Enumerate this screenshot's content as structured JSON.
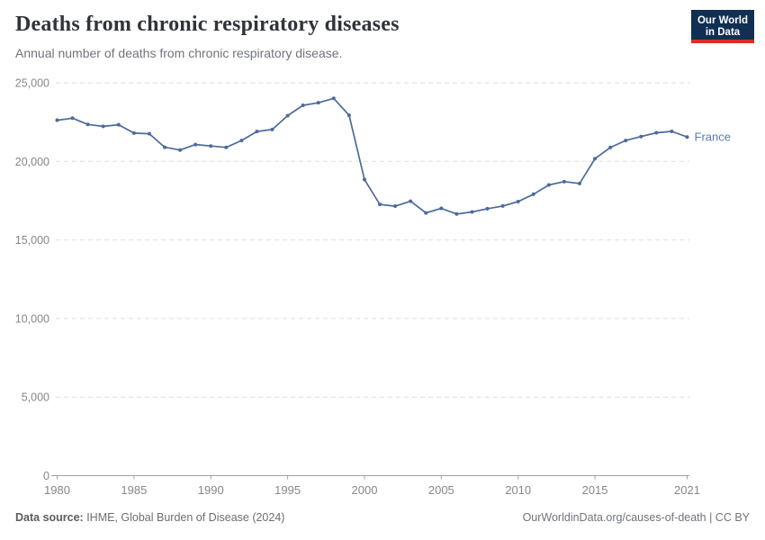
{
  "header": {
    "title": "Deaths from chronic respiratory diseases",
    "subtitle": "Annual number of deaths from chronic respiratory disease."
  },
  "logo": {
    "line1": "Our World",
    "line2": "in Data"
  },
  "footer": {
    "source_label": "Data source:",
    "source_value": " IHME, Global Burden of Disease (2024)",
    "link": "OurWorldinData.org/causes-of-death | CC BY"
  },
  "colors": {
    "line": "#4C6A9C",
    "entity_label": "#5B7CAB",
    "grid": "#dedede",
    "axis": "#a2a2a2",
    "tick_text": "#878787",
    "logo_navy": "#102f52",
    "logo_red": "#dc2e22"
  },
  "chart_data": {
    "type": "line",
    "title": "Deaths from chronic respiratory diseases",
    "subtitle": "Annual number of deaths from chronic respiratory disease.",
    "xlabel": "",
    "ylabel": "",
    "x_range": [
      1980,
      2021
    ],
    "ylim": [
      0,
      25000
    ],
    "grid": "horizontal dashed gridlines, solid bottom axis only",
    "legend": "inline end-of-line entity label",
    "marker": "point markers on every year",
    "yticks": [
      {
        "value": 0,
        "label": "0"
      },
      {
        "value": 5000,
        "label": "5,000"
      },
      {
        "value": 10000,
        "label": "10,000"
      },
      {
        "value": 15000,
        "label": "15,000"
      },
      {
        "value": 20000,
        "label": "20,000"
      },
      {
        "value": 25000,
        "label": "25,000"
      }
    ],
    "xticks": [
      {
        "value": 1980,
        "label": "1980"
      },
      {
        "value": 1985,
        "label": "1985"
      },
      {
        "value": 1990,
        "label": "1990"
      },
      {
        "value": 1995,
        "label": "1995"
      },
      {
        "value": 2000,
        "label": "2000"
      },
      {
        "value": 2005,
        "label": "2005"
      },
      {
        "value": 2010,
        "label": "2010"
      },
      {
        "value": 2015,
        "label": "2015"
      },
      {
        "value": 2021,
        "label": "2021"
      }
    ],
    "series": [
      {
        "name": "France",
        "color": "#4C6A9C",
        "x": [
          1980,
          1981,
          1982,
          1983,
          1984,
          1985,
          1986,
          1987,
          1988,
          1989,
          1990,
          1991,
          1992,
          1993,
          1994,
          1995,
          1996,
          1997,
          1998,
          1999,
          2000,
          2001,
          2002,
          2003,
          2004,
          2005,
          2006,
          2007,
          2008,
          2009,
          2010,
          2011,
          2012,
          2013,
          2014,
          2015,
          2016,
          2017,
          2018,
          2019,
          2020,
          2021
        ],
        "values": [
          22620,
          22750,
          22350,
          22230,
          22330,
          21800,
          21760,
          20900,
          20720,
          21070,
          20980,
          20890,
          21330,
          21900,
          22030,
          22910,
          23570,
          23730,
          24010,
          22930,
          18840,
          17260,
          17150,
          17460,
          16720,
          17010,
          16650,
          16780,
          16990,
          17160,
          17440,
          17910,
          18500,
          18710,
          18590,
          20170,
          20880,
          21330,
          21580,
          21820,
          21910,
          21550
        ]
      }
    ]
  }
}
